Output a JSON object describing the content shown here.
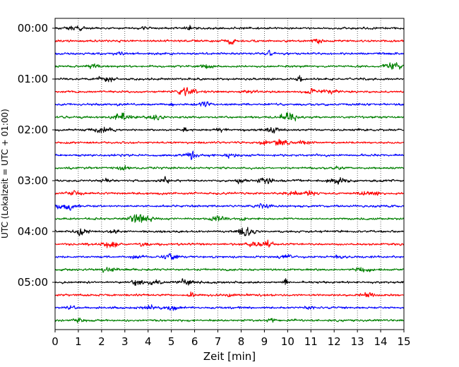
{
  "chart_data": {
    "type": "line",
    "title": "",
    "xlabel": "Zeit  [min]",
    "ylabel": "UTC (Lokalzeit = UTC + 01:00)",
    "xlim": [
      0,
      15
    ],
    "xticks": [
      0,
      1,
      2,
      3,
      4,
      5,
      6,
      7,
      8,
      9,
      10,
      11,
      12,
      13,
      14,
      15
    ],
    "ytick_labels": [
      "00:00",
      "01:00",
      "02:00",
      "03:00",
      "04:00",
      "05:00"
    ],
    "row_minutes": 15,
    "grid": "vertical dotted lines at each minute",
    "trace_color_cycle": [
      "#000000",
      "#ff0000",
      "#0000ff",
      "#008000"
    ],
    "rows": [
      {
        "start": "00:00",
        "color": "#000000"
      },
      {
        "start": "00:15",
        "color": "#ff0000"
      },
      {
        "start": "00:30",
        "color": "#0000ff"
      },
      {
        "start": "00:45",
        "color": "#008000"
      },
      {
        "start": "01:00",
        "color": "#000000"
      },
      {
        "start": "01:15",
        "color": "#ff0000"
      },
      {
        "start": "01:30",
        "color": "#0000ff"
      },
      {
        "start": "01:45",
        "color": "#008000"
      },
      {
        "start": "02:00",
        "color": "#000000"
      },
      {
        "start": "02:15",
        "color": "#ff0000"
      },
      {
        "start": "02:30",
        "color": "#0000ff"
      },
      {
        "start": "02:45",
        "color": "#008000"
      },
      {
        "start": "03:00",
        "color": "#000000"
      },
      {
        "start": "03:15",
        "color": "#ff0000"
      },
      {
        "start": "03:30",
        "color": "#0000ff"
      },
      {
        "start": "03:45",
        "color": "#008000"
      },
      {
        "start": "04:00",
        "color": "#000000"
      },
      {
        "start": "04:15",
        "color": "#ff0000"
      },
      {
        "start": "04:30",
        "color": "#0000ff"
      },
      {
        "start": "04:45",
        "color": "#008000"
      },
      {
        "start": "05:00",
        "color": "#000000"
      },
      {
        "start": "05:15",
        "color": "#ff0000"
      },
      {
        "start": "05:30",
        "color": "#0000ff"
      },
      {
        "start": "05:45",
        "color": "#008000"
      }
    ]
  }
}
